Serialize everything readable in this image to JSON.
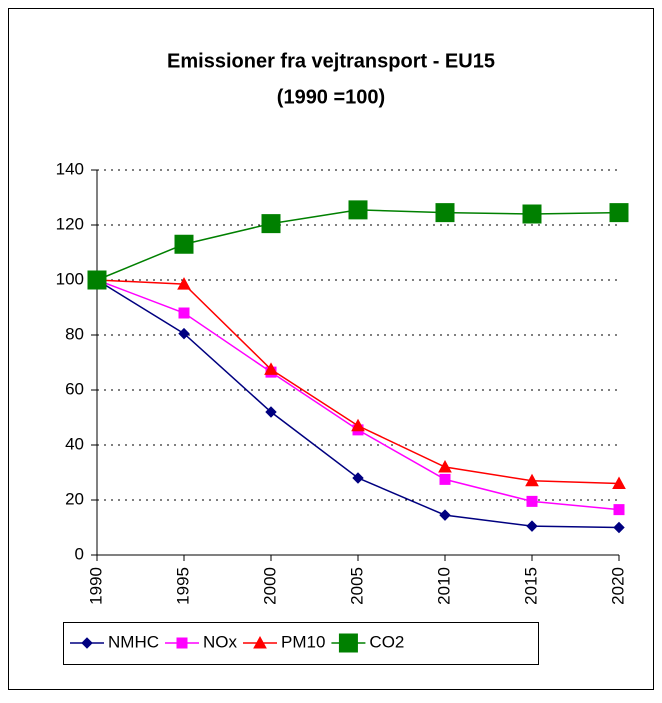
{
  "chart_data": {
    "type": "line",
    "title": "Emissioner fra vejtransport - EU15",
    "subtitle": "(1990 =100)",
    "x": [
      1990,
      1995,
      2000,
      2005,
      2010,
      2015,
      2020
    ],
    "xlim": [
      1990,
      2020
    ],
    "xticks": [
      1990,
      1995,
      2000,
      2005,
      2010,
      2015,
      2020
    ],
    "ylim": [
      0,
      140
    ],
    "yticks": [
      0,
      20,
      40,
      60,
      80,
      100,
      120,
      140
    ],
    "grid": true,
    "legend": "bottom",
    "series": [
      {
        "name": "NMHC",
        "color": "#000080",
        "marker": "diamond",
        "values": [
          100,
          80.5,
          52,
          28,
          14.5,
          10.5,
          10
        ]
      },
      {
        "name": "NOx",
        "color": "#ff00ff",
        "marker": "square",
        "values": [
          100,
          88,
          66.5,
          45.5,
          27.5,
          19.5,
          16.5
        ]
      },
      {
        "name": "PM10",
        "color": "#ff0000",
        "marker": "triangle",
        "values": [
          100,
          98.5,
          67.5,
          47,
          32,
          27,
          26
        ]
      },
      {
        "name": "CO2",
        "color": "#008000",
        "marker": "bigsquare",
        "values": [
          100,
          113,
          120.5,
          125.5,
          124.5,
          124,
          124.5
        ]
      }
    ]
  }
}
